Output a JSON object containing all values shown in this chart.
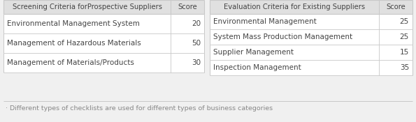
{
  "left_table": {
    "header": [
      "Screening Criteria forProspective Suppliers",
      "Score"
    ],
    "rows": [
      [
        "Environmental Management System",
        "20"
      ],
      [
        "Management of Hazardous Materials",
        "50"
      ],
      [
        "Management of Materials/Products",
        "30"
      ]
    ]
  },
  "right_table": {
    "header": [
      "Evaluation Criteria for Existing Suppliers",
      "Score"
    ],
    "rows": [
      [
        "Environmental Management",
        "25"
      ],
      [
        "System Mass Production Management",
        "25"
      ],
      [
        "Supplier Management",
        "15"
      ],
      [
        "Inspection Management",
        "35"
      ]
    ]
  },
  "footnote": "· Different types of checklists are used for different types of business categories",
  "bg_color": "#f0f0f0",
  "header_bg": "#e0e0e0",
  "row_bg": "#ffffff",
  "line_color": "#c8c8c8",
  "text_color": "#444444",
  "footnote_color": "#888888",
  "fig_width": 5.95,
  "fig_height": 1.75,
  "dpi": 100
}
